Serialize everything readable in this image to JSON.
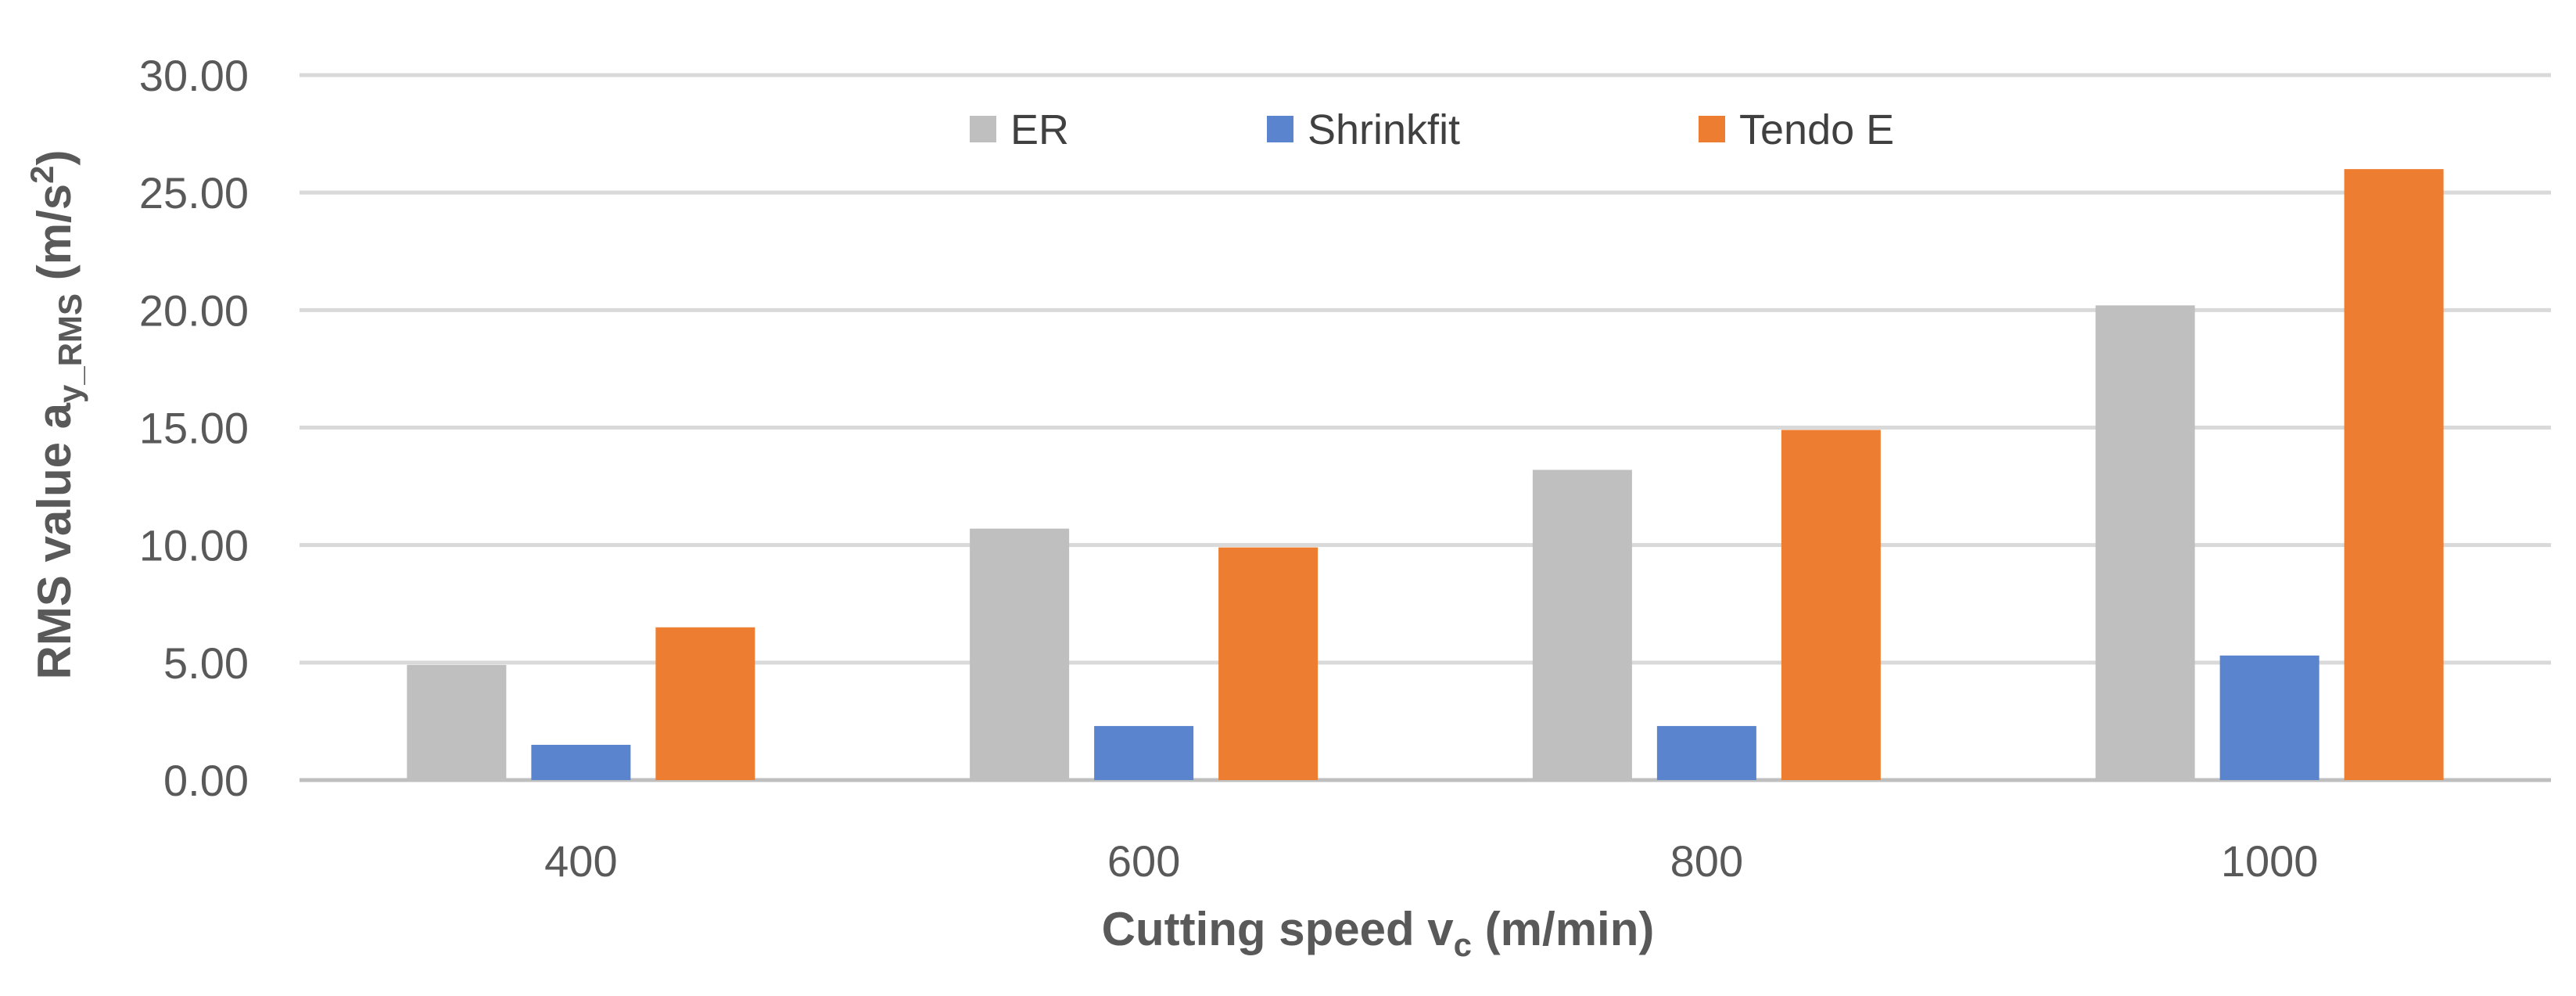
{
  "chart_data": {
    "type": "bar",
    "title": "",
    "categories": [
      "400",
      "600",
      "800",
      "1000"
    ],
    "series": [
      {
        "name": "ER",
        "color": "#bfbfbf",
        "values": [
          4.9,
          10.7,
          13.2,
          20.2
        ]
      },
      {
        "name": "Shrinkfit",
        "color": "#5b84cf",
        "values": [
          1.5,
          2.3,
          2.3,
          5.3
        ]
      },
      {
        "name": "Tendo E",
        "color": "#ed7d31",
        "values": [
          6.5,
          9.9,
          14.9,
          26.0
        ]
      }
    ],
    "ylim": [
      0,
      30
    ],
    "yticks": [
      "0.00",
      "5.00",
      "10.00",
      "15.00",
      "20.00",
      "25.00",
      "30.00"
    ],
    "xlabel": {
      "main": "Cutting speed v",
      "sub": "c",
      "unit": " (m/min)"
    },
    "ylabel": {
      "main": "RMS value a",
      "sub": "y_RMS",
      "unit": " (m/s",
      "sup": "2",
      "close": ")"
    },
    "gridlines": true,
    "legend_position": "top-center",
    "gridline_color": "#d9d9d9",
    "axis_color": "#bfbfbf"
  }
}
